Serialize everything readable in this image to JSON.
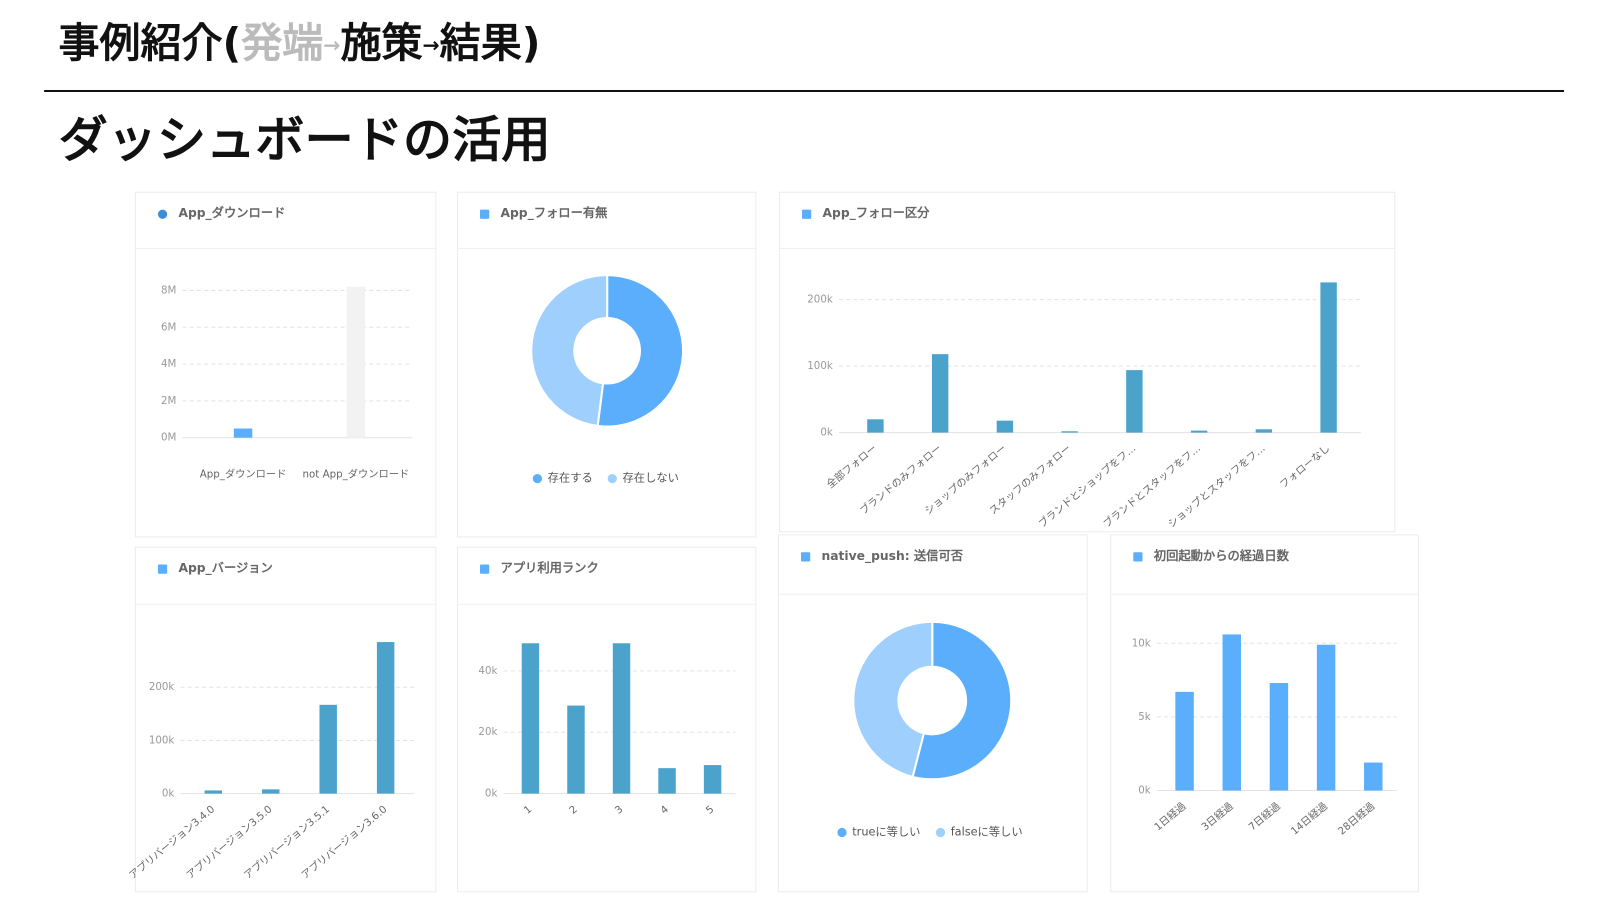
{
  "header": {
    "title_parts": [
      "事例紹介(",
      "発端",
      "→",
      "施策",
      "→",
      "結果)"
    ],
    "subtitle": "ダッシュボードの活用"
  },
  "chart_data": [
    {
      "type": "bar",
      "title": "App_ダウンロード",
      "categories": [
        "App_ダウンロード",
        "not App_ダウンロード"
      ],
      "values": [
        500000,
        8200000
      ],
      "colors": [
        "#5aaefc",
        "#f2f2f2"
      ],
      "ylim": [
        0,
        8200000
      ],
      "yticks": [
        {
          "value": 0,
          "label": "0M"
        },
        {
          "value": 2000000,
          "label": "2M"
        },
        {
          "value": 4000000,
          "label": "4M"
        },
        {
          "value": 6000000,
          "label": "6M"
        },
        {
          "value": 8000000,
          "label": "8M"
        }
      ],
      "grid": true
    },
    {
      "type": "pie",
      "title": "App_フォロー有無",
      "categories": [
        "存在する",
        "存在しない"
      ],
      "values": [
        52,
        48
      ],
      "colors": [
        "#5aaefc",
        "#9fcffc"
      ],
      "donut": true
    },
    {
      "type": "bar",
      "title": "App_フォロー区分",
      "categories": [
        "全部フォロー",
        "ブランドのみフォロー",
        "ショップのみフォロー",
        "スタッフのみフォロー",
        "ブランドとショップをフ…",
        "ブランドとスタッフをフ…",
        "ショップとスタッフをフ…",
        "フォローなし"
      ],
      "values": [
        20000,
        118000,
        18000,
        2000,
        94000,
        3000,
        5000,
        226000
      ],
      "color": "#4ba3cb",
      "ylim": [
        0,
        230000
      ],
      "yticks": [
        {
          "value": 0,
          "label": "0k"
        },
        {
          "value": 100000,
          "label": "100k"
        },
        {
          "value": 200000,
          "label": "200k"
        }
      ],
      "grid": true
    },
    {
      "type": "bar",
      "title": "App_バージョン",
      "categories": [
        "アプリバージョン3.4.0",
        "アプリバージョン3.5.0",
        "アプリバージョン3.5.1",
        "アプリバージョン3.6.0"
      ],
      "values": [
        6000,
        8000,
        167000,
        285000
      ],
      "color": "#4ba3cb",
      "ylim": [
        0,
        290000
      ],
      "yticks": [
        {
          "value": 0,
          "label": "0k"
        },
        {
          "value": 100000,
          "label": "100k"
        },
        {
          "value": 200000,
          "label": "200k"
        }
      ],
      "grid": true
    },
    {
      "type": "bar",
      "title": "アプリ利用ランク",
      "categories": [
        "1",
        "2",
        "3",
        "4",
        "5"
      ],
      "values": [
        49000,
        28700,
        49000,
        8300,
        9300
      ],
      "color": "#4ba3cb",
      "ylim": [
        0,
        50000
      ],
      "yticks": [
        {
          "value": 0,
          "label": "0k"
        },
        {
          "value": 20000,
          "label": "20k"
        },
        {
          "value": 40000,
          "label": "40k"
        }
      ],
      "grid": true
    },
    {
      "type": "pie",
      "title": "native_push: 送信可否",
      "categories": [
        "trueに等しい",
        "falseに等しい"
      ],
      "values": [
        54,
        46
      ],
      "colors": [
        "#5aaefc",
        "#9fcffc"
      ],
      "donut": true
    },
    {
      "type": "bar",
      "title": "初回起動からの経過日数",
      "categories": [
        "1日経過",
        "3日経過",
        "7日経過",
        "14日経過",
        "28日経過"
      ],
      "values": [
        6700,
        10600,
        7300,
        9900,
        1900
      ],
      "color": "#5aaefc",
      "ylim": [
        0,
        11000
      ],
      "yticks": [
        {
          "value": 0,
          "label": "0k"
        },
        {
          "value": 5000,
          "label": "5k"
        },
        {
          "value": 10000,
          "label": "10k"
        }
      ],
      "grid": true
    }
  ]
}
